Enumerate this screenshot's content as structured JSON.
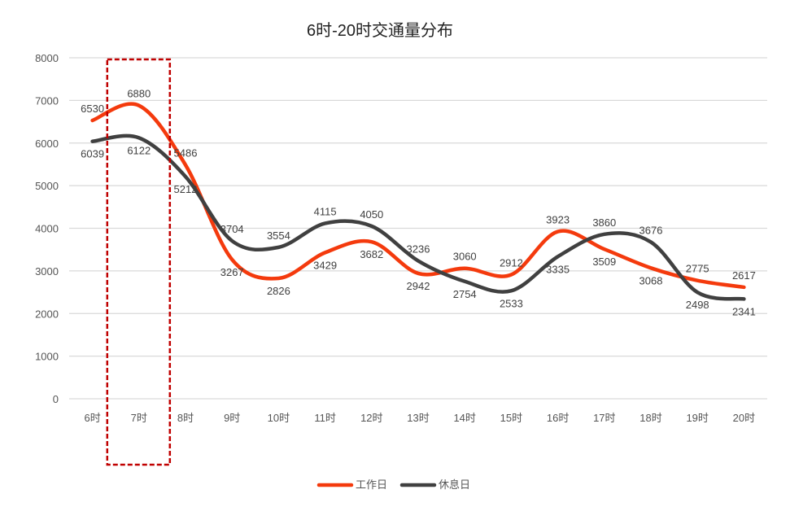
{
  "chart_data": {
    "type": "line",
    "title": "6时-20时交通量分布",
    "categories": [
      "6时",
      "7时",
      "8时",
      "9时",
      "10时",
      "11时",
      "12时",
      "13时",
      "14时",
      "15时",
      "16时",
      "17时",
      "18时",
      "19时",
      "20时"
    ],
    "series": [
      {
        "name": "工作日",
        "color": "#F43A0D",
        "values": [
          6530,
          6880,
          5486,
          3267,
          2826,
          3429,
          3682,
          2942,
          3060,
          2912,
          3923,
          3509,
          3068,
          2775,
          2617
        ]
      },
      {
        "name": "休息日",
        "color": "#404040",
        "values": [
          6039,
          6122,
          5212,
          3704,
          3554,
          4115,
          4050,
          3236,
          2754,
          2533,
          3335,
          3860,
          3676,
          2498,
          2341
        ]
      }
    ],
    "yticks": [
      0,
      1000,
      2000,
      3000,
      4000,
      5000,
      6000,
      7000,
      8000
    ],
    "ylim": [
      0,
      8000
    ],
    "grid": true,
    "smooth": true,
    "legend": "bottom",
    "highlight_category": "7时",
    "highlight_color": "#C00000"
  }
}
